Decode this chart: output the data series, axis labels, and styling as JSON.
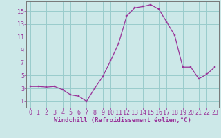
{
  "x": [
    0,
    1,
    2,
    3,
    4,
    5,
    6,
    7,
    8,
    9,
    10,
    11,
    12,
    13,
    14,
    15,
    16,
    17,
    18,
    19,
    20,
    21,
    22,
    23
  ],
  "y": [
    3.3,
    3.3,
    3.2,
    3.3,
    2.8,
    2.0,
    1.8,
    1.0,
    3.0,
    4.8,
    7.3,
    10.0,
    14.2,
    15.5,
    15.7,
    16.0,
    15.3,
    13.3,
    11.2,
    6.3,
    6.3,
    4.5,
    5.2,
    6.3
  ],
  "xlabel": "Windchill (Refroidissement éolien,°C)",
  "line_color": "#993399",
  "marker_color": "#993399",
  "bg_color": "#cce8e8",
  "grid_color": "#99cccc",
  "tick_color": "#993399",
  "label_color": "#993399",
  "spine_color": "#777777",
  "ylim": [
    0,
    16.5
  ],
  "xlim": [
    -0.5,
    23.5
  ],
  "yticks": [
    1,
    3,
    5,
    7,
    9,
    11,
    13,
    15
  ],
  "xticks": [
    0,
    1,
    2,
    3,
    4,
    5,
    6,
    7,
    8,
    9,
    10,
    11,
    12,
    13,
    14,
    15,
    16,
    17,
    18,
    19,
    20,
    21,
    22,
    23
  ],
  "xtick_labels": [
    "0",
    "1",
    "2",
    "3",
    "4",
    "5",
    "6",
    "7",
    "8",
    "9",
    "10",
    "11",
    "12",
    "13",
    "14",
    "15",
    "16",
    "17",
    "18",
    "19",
    "20",
    "21",
    "22",
    "23"
  ],
  "xlabel_fontsize": 6.5,
  "tick_fontsize": 6.0
}
